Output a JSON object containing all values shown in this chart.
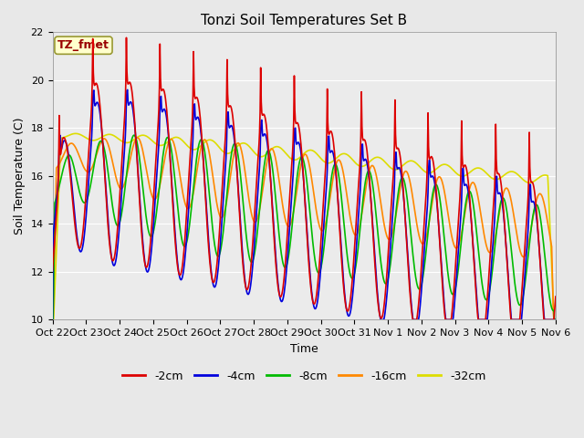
{
  "title": "Tonzi Soil Temperatures Set B",
  "xlabel": "Time",
  "ylabel": "Soil Temperature (C)",
  "ylim": [
    10,
    22
  ],
  "background_color": "#e8e8e8",
  "plot_bg_color": "#ebebeb",
  "annotation_text": "TZ_fmet",
  "annotation_color": "#990000",
  "annotation_bg": "#ffffcc",
  "annotation_border": "#999933",
  "x_tick_labels": [
    "Oct 22",
    "Oct 23",
    "Oct 24",
    "Oct 25",
    "Oct 26",
    "Oct 27",
    "Oct 28",
    "Oct 29",
    "Oct 30",
    "Oct 31",
    "Nov 1",
    "Nov 2",
    "Nov 3",
    "Nov 4",
    "Nov 5",
    "Nov 6"
  ],
  "series": {
    "-2cm": {
      "color": "#dd0000",
      "lw": 1.2
    },
    "-4cm": {
      "color": "#0000dd",
      "lw": 1.2
    },
    "-8cm": {
      "color": "#00bb00",
      "lw": 1.2
    },
    "-16cm": {
      "color": "#ff8800",
      "lw": 1.2
    },
    "-32cm": {
      "color": "#dddd00",
      "lw": 1.2
    }
  },
  "title_fontsize": 11,
  "axis_label_fontsize": 9,
  "tick_fontsize": 8
}
